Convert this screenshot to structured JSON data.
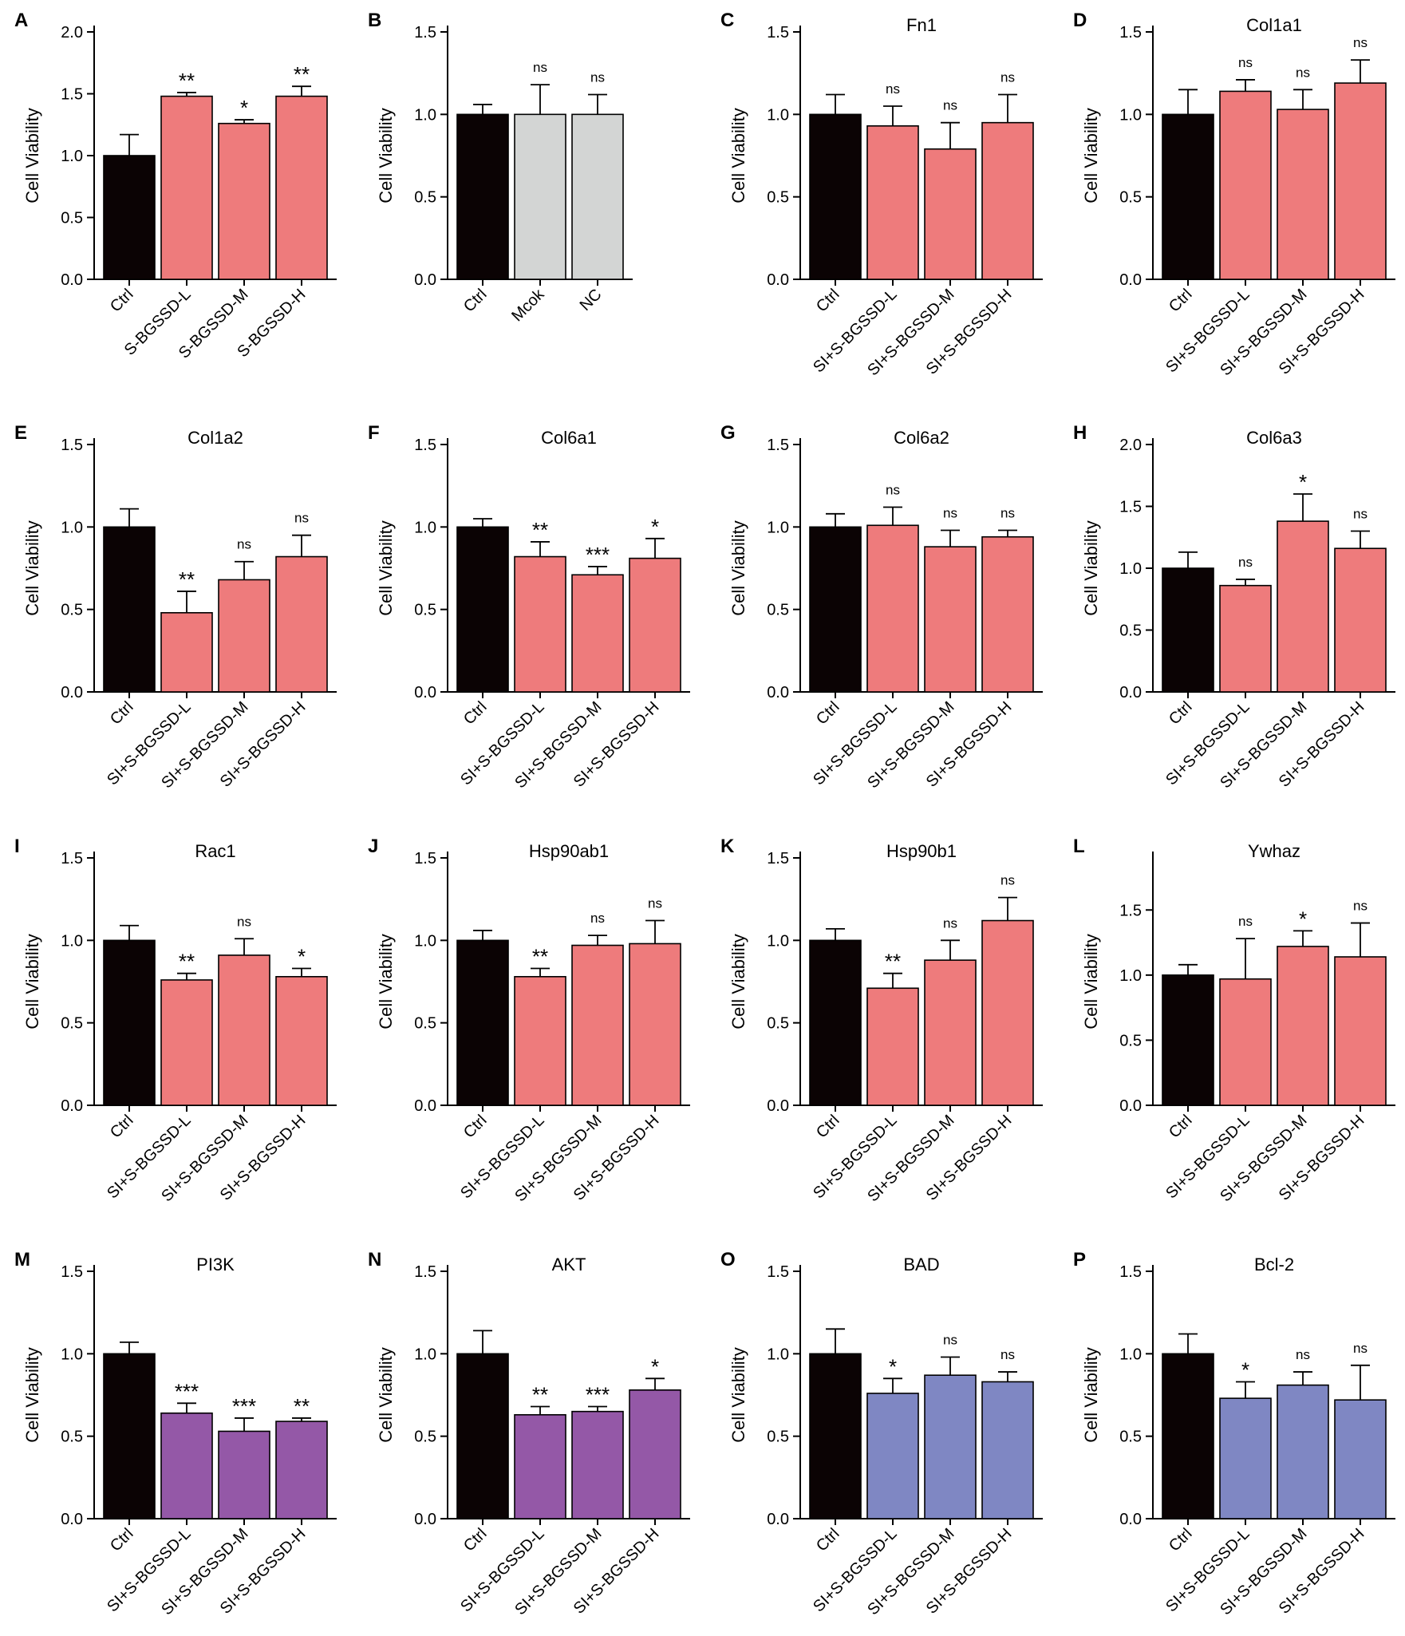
{
  "colors": {
    "ctrl": "#0b0304",
    "red": "#ee7b7c",
    "gray": "#d3d5d4",
    "purple": "#9458a7",
    "blue": "#7f87c3",
    "axis": "#000000"
  },
  "chart_data": [
    {
      "panel": "A",
      "type": "bar",
      "title": "",
      "ylabel": "Cell Viability",
      "ylim": [
        0,
        2.0
      ],
      "yticks": [
        0.0,
        0.5,
        1.0,
        1.5,
        2.0
      ],
      "tickFormat": 1,
      "categories": [
        "Ctrl",
        "S-BGSSD-L",
        "S-BGSSD-M",
        "S-BGSSD-H"
      ],
      "values": [
        1.0,
        1.48,
        1.26,
        1.48
      ],
      "errors": [
        0.17,
        0.03,
        0.03,
        0.08
      ],
      "significance": [
        "",
        "**",
        "*",
        "**"
      ],
      "colors": [
        "ctrl",
        "red",
        "red",
        "red"
      ]
    },
    {
      "panel": "B",
      "type": "bar",
      "title": "",
      "ylabel": "Cell Viability",
      "ylim": [
        0,
        1.5
      ],
      "yticks": [
        0.0,
        0.5,
        1.0,
        1.5
      ],
      "tickFormat": 1,
      "categories": [
        "Ctrl",
        "Mcok",
        "NC"
      ],
      "values": [
        1.0,
        1.0,
        1.0
      ],
      "errors": [
        0.06,
        0.18,
        0.12
      ],
      "significance": [
        "",
        "ns",
        "ns"
      ],
      "colors": [
        "ctrl",
        "gray",
        "gray"
      ]
    },
    {
      "panel": "C",
      "type": "bar",
      "title": "Fn1",
      "ylabel": "Cell Viability",
      "ylim": [
        0,
        1.5
      ],
      "yticks": [
        0.0,
        0.5,
        1.0,
        1.5
      ],
      "tickFormat": 1,
      "categories": [
        "Ctrl",
        "SI+S-BGSSD-L",
        "SI+S-BGSSD-M",
        "SI+S-BGSSD-H"
      ],
      "values": [
        1.0,
        0.93,
        0.79,
        0.95
      ],
      "errors": [
        0.12,
        0.12,
        0.16,
        0.17
      ],
      "significance": [
        "",
        "ns",
        "ns",
        "ns"
      ],
      "colors": [
        "ctrl",
        "red",
        "red",
        "red"
      ]
    },
    {
      "panel": "D",
      "type": "bar",
      "title": "Col1a1",
      "ylabel": "Cell Viability",
      "ylim": [
        0,
        1.5
      ],
      "yticks": [
        0.0,
        0.5,
        1.0,
        1.5
      ],
      "tickFormat": 1,
      "categories": [
        "Ctrl",
        "SI+S-BGSSD-L",
        "SI+S-BGSSD-M",
        "SI+S-BGSSD-H"
      ],
      "values": [
        1.0,
        1.14,
        1.03,
        1.19
      ],
      "errors": [
        0.15,
        0.07,
        0.12,
        0.14
      ],
      "significance": [
        "",
        "ns",
        "ns",
        "ns"
      ],
      "colors": [
        "ctrl",
        "red",
        "red",
        "red"
      ]
    },
    {
      "panel": "E",
      "type": "bar",
      "title": "Col1a2",
      "ylabel": "Cell Viability",
      "ylim": [
        0,
        1.5
      ],
      "yticks": [
        0.0,
        0.5,
        1.0,
        1.5
      ],
      "tickFormat": 1,
      "categories": [
        "Ctrl",
        "SI+S-BGSSD-L",
        "SI+S-BGSSD-M",
        "SI+S-BGSSD-H"
      ],
      "values": [
        1.0,
        0.48,
        0.68,
        0.82
      ],
      "errors": [
        0.11,
        0.13,
        0.11,
        0.13
      ],
      "significance": [
        "",
        "**",
        "ns",
        "ns"
      ],
      "colors": [
        "ctrl",
        "red",
        "red",
        "red"
      ]
    },
    {
      "panel": "F",
      "type": "bar",
      "title": "Col6a1",
      "ylabel": "Cell Viability",
      "ylim": [
        0,
        1.5
      ],
      "yticks": [
        0.0,
        0.5,
        1.0,
        1.5
      ],
      "tickFormat": 1,
      "categories": [
        "Ctrl",
        "SI+S-BGSSD-L",
        "SI+S-BGSSD-M",
        "SI+S-BGSSD-H"
      ],
      "values": [
        1.0,
        0.82,
        0.71,
        0.81
      ],
      "errors": [
        0.05,
        0.09,
        0.05,
        0.12
      ],
      "significance": [
        "",
        "**",
        "***",
        "*"
      ],
      "colors": [
        "ctrl",
        "red",
        "red",
        "red"
      ]
    },
    {
      "panel": "G",
      "type": "bar",
      "title": "Col6a2",
      "ylabel": "Cell Viability",
      "ylim": [
        0,
        1.5
      ],
      "yticks": [
        0.0,
        0.5,
        1.0,
        1.5
      ],
      "tickFormat": 1,
      "categories": [
        "Ctrl",
        "SI+S-BGSSD-L",
        "SI+S-BGSSD-M",
        "SI+S-BGSSD-H"
      ],
      "values": [
        1.0,
        1.01,
        0.88,
        0.94
      ],
      "errors": [
        0.08,
        0.11,
        0.1,
        0.04
      ],
      "significance": [
        "",
        "ns",
        "ns",
        "ns"
      ],
      "colors": [
        "ctrl",
        "red",
        "red",
        "red"
      ]
    },
    {
      "panel": "H",
      "type": "bar",
      "title": "Col6a3",
      "ylabel": "Cell Viability",
      "ylim": [
        0,
        2.0
      ],
      "yticks": [
        0.0,
        0.5,
        1.0,
        1.5,
        2.0
      ],
      "tickFormat": 1,
      "categories": [
        "Ctrl",
        "SI+S-BGSSD-L",
        "SI+S-BGSSD-M",
        "SI+S-BGSSD-H"
      ],
      "values": [
        1.0,
        0.86,
        1.38,
        1.16
      ],
      "errors": [
        0.13,
        0.05,
        0.22,
        0.14
      ],
      "significance": [
        "",
        "ns",
        "*",
        "ns"
      ],
      "colors": [
        "ctrl",
        "red",
        "red",
        "red"
      ]
    },
    {
      "panel": "I",
      "type": "bar",
      "title": "Rac1",
      "ylabel": "Cell Viability",
      "ylim": [
        0,
        1.5
      ],
      "yticks": [
        0.0,
        0.5,
        1.0,
        1.5
      ],
      "tickFormat": 1,
      "categories": [
        "Ctrl",
        "SI+S-BGSSD-L",
        "SI+S-BGSSD-M",
        "SI+S-BGSSD-H"
      ],
      "values": [
        1.0,
        0.76,
        0.91,
        0.78
      ],
      "errors": [
        0.09,
        0.04,
        0.1,
        0.05
      ],
      "significance": [
        "",
        "**",
        "ns",
        "*"
      ],
      "colors": [
        "ctrl",
        "red",
        "red",
        "red"
      ]
    },
    {
      "panel": "J",
      "type": "bar",
      "title": "Hsp90ab1",
      "ylabel": "Cell Viability",
      "ylim": [
        0,
        1.5
      ],
      "yticks": [
        0.0,
        0.5,
        1.0,
        1.5
      ],
      "tickFormat": 1,
      "categories": [
        "Ctrl",
        "SI+S-BGSSD-L",
        "SI+S-BGSSD-M",
        "SI+S-BGSSD-H"
      ],
      "values": [
        1.0,
        0.78,
        0.97,
        0.98
      ],
      "errors": [
        0.06,
        0.05,
        0.06,
        0.14
      ],
      "significance": [
        "",
        "**",
        "ns",
        "ns"
      ],
      "colors": [
        "ctrl",
        "red",
        "red",
        "red"
      ]
    },
    {
      "panel": "K",
      "type": "bar",
      "title": "Hsp90b1",
      "ylabel": "Cell Viability",
      "ylim": [
        0,
        1.5
      ],
      "yticks": [
        0.0,
        0.5,
        1.0,
        1.5
      ],
      "tickFormat": 1,
      "categories": [
        "Ctrl",
        "SI+S-BGSSD-L",
        "SI+S-BGSSD-M",
        "SI+S-BGSSD-H"
      ],
      "values": [
        1.0,
        0.71,
        0.88,
        1.12
      ],
      "errors": [
        0.07,
        0.09,
        0.12,
        0.14
      ],
      "significance": [
        "",
        "**",
        "ns",
        "ns"
      ],
      "colors": [
        "ctrl",
        "red",
        "red",
        "red"
      ]
    },
    {
      "panel": "L",
      "type": "bar",
      "title": "Ywhaz",
      "ylabel": "Cell Viability",
      "ylim": [
        0,
        1.9
      ],
      "yticks": [
        0.0,
        0.5,
        1.0,
        1.5
      ],
      "tickFormat": 1,
      "categories": [
        "Ctrl",
        "SI+S-BGSSD-L",
        "SI+S-BGSSD-M",
        "SI+S-BGSSD-H"
      ],
      "values": [
        1.0,
        0.97,
        1.22,
        1.14
      ],
      "errors": [
        0.08,
        0.31,
        0.12,
        0.26
      ],
      "significance": [
        "",
        "ns",
        "*",
        "ns"
      ],
      "colors": [
        "ctrl",
        "red",
        "red",
        "red"
      ]
    },
    {
      "panel": "M",
      "type": "bar",
      "title": "PI3K",
      "ylabel": "Cell Viability",
      "ylim": [
        0,
        1.5
      ],
      "yticks": [
        0.0,
        0.5,
        1.0,
        1.5
      ],
      "tickFormat": 1,
      "categories": [
        "Ctrl",
        "SI+S-BGSSD-L",
        "SI+S-BGSSD-M",
        "SI+S-BGSSD-H"
      ],
      "values": [
        1.0,
        0.64,
        0.53,
        0.59
      ],
      "errors": [
        0.07,
        0.06,
        0.08,
        0.02
      ],
      "significance": [
        "",
        "***",
        "***",
        "**"
      ],
      "colors": [
        "ctrl",
        "purple",
        "purple",
        "purple"
      ]
    },
    {
      "panel": "N",
      "type": "bar",
      "title": "AKT",
      "ylabel": "Cell Viability",
      "ylim": [
        0,
        1.5
      ],
      "yticks": [
        0.0,
        0.5,
        1.0,
        1.5
      ],
      "tickFormat": 1,
      "categories": [
        "Ctrl",
        "SI+S-BGSSD-L",
        "SI+S-BGSSD-M",
        "SI+S-BGSSD-H"
      ],
      "values": [
        1.0,
        0.63,
        0.65,
        0.78
      ],
      "errors": [
        0.14,
        0.05,
        0.03,
        0.07
      ],
      "significance": [
        "",
        "**",
        "***",
        "*"
      ],
      "colors": [
        "ctrl",
        "purple",
        "purple",
        "purple"
      ]
    },
    {
      "panel": "O",
      "type": "bar",
      "title": "BAD",
      "ylabel": "Cell Viability",
      "ylim": [
        0,
        1.5
      ],
      "yticks": [
        0.0,
        0.5,
        1.0,
        1.5
      ],
      "tickFormat": 1,
      "categories": [
        "Ctrl",
        "SI+S-BGSSD-L",
        "SI+S-BGSSD-M",
        "SI+S-BGSSD-H"
      ],
      "values": [
        1.0,
        0.76,
        0.87,
        0.83
      ],
      "errors": [
        0.15,
        0.09,
        0.11,
        0.06
      ],
      "significance": [
        "",
        "*",
        "ns",
        "ns"
      ],
      "colors": [
        "ctrl",
        "blue",
        "blue",
        "blue"
      ]
    },
    {
      "panel": "P",
      "type": "bar",
      "title": "Bcl-2",
      "ylabel": "Cell Viability",
      "ylim": [
        0,
        1.5
      ],
      "yticks": [
        0.0,
        0.5,
        1.0,
        1.5
      ],
      "tickFormat": 1,
      "categories": [
        "Ctrl",
        "SI+S-BGSSD-L",
        "SI+S-BGSSD-M",
        "SI+S-BGSSD-H"
      ],
      "values": [
        1.0,
        0.73,
        0.81,
        0.72
      ],
      "errors": [
        0.12,
        0.1,
        0.08,
        0.21
      ],
      "significance": [
        "",
        "*",
        "ns",
        "ns"
      ],
      "colors": [
        "ctrl",
        "blue",
        "blue",
        "blue"
      ]
    }
  ]
}
